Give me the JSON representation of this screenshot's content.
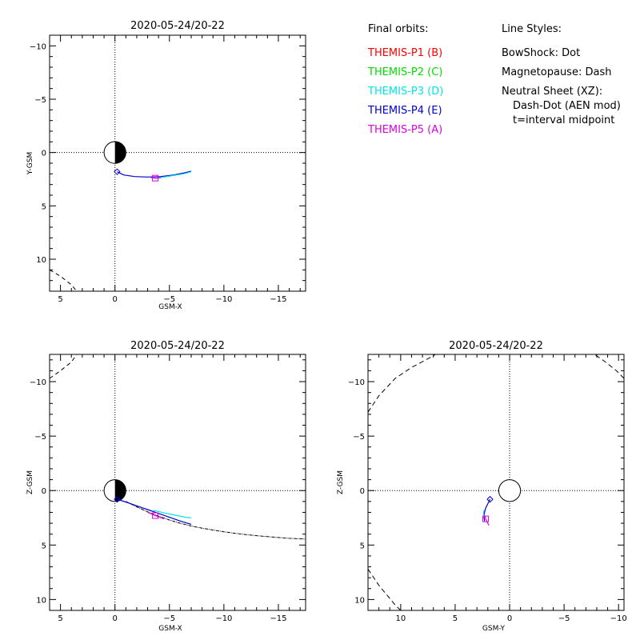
{
  "legend": {
    "orbits_title": "Final orbits:",
    "orbits": [
      {
        "label": "THEMIS-P1 (B)",
        "color": "#ff0000"
      },
      {
        "label": "THEMIS-P2 (C)",
        "color": "#00dd00"
      },
      {
        "label": "THEMIS-P3 (D)",
        "color": "#00e5e5"
      },
      {
        "label": "THEMIS-P4 (E)",
        "color": "#0000cc"
      },
      {
        "label": "THEMIS-P5 (A)",
        "color": "#dd00dd"
      }
    ],
    "styles_title": "Line Styles:",
    "styles": [
      "BowShock: Dot",
      "Magnetopause: Dash",
      "Neutral Sheet (XZ):",
      "Dash-Dot (AEN mod)",
      "t=interval midpoint"
    ]
  },
  "chart_data": [
    {
      "id": "xy",
      "type": "line",
      "title": "2020-05-24/20-22",
      "xlabel": "GSM-X",
      "ylabel": "Y-GSM",
      "xlim": [
        6,
        -17.5
      ],
      "ylim": [
        -11,
        13
      ],
      "xticks": [
        5,
        0,
        -5,
        -10,
        -15
      ],
      "yticks": [
        -10,
        -5,
        0,
        5,
        10
      ],
      "earth": {
        "radius": 1,
        "dark_side": "right"
      },
      "series": [
        {
          "ref": "THEMIS-P4 (E)",
          "color": "#0000cc",
          "marker": "diamond",
          "x": [
            -0.2,
            -0.8,
            -1.8,
            -3.0,
            -4.2,
            -5.4,
            -6.4,
            -7.0
          ],
          "y": [
            1.8,
            2.1,
            2.25,
            2.3,
            2.25,
            2.1,
            1.9,
            1.75
          ]
        },
        {
          "ref": "THEMIS-P3 (D)",
          "color": "#00e5e5",
          "x": [
            -3.7,
            -4.5,
            -5.4,
            -6.3,
            -7.0
          ],
          "y": [
            2.45,
            2.3,
            2.15,
            2.0,
            1.8
          ]
        },
        {
          "ref": "THEMIS-P5 (A)",
          "color": "#dd00dd",
          "marker": "square",
          "x": [
            -3.3,
            -3.7,
            -4.2
          ],
          "y": [
            2.35,
            2.4,
            2.35
          ]
        }
      ],
      "bowshock": {
        "x": [
          6,
          5,
          4,
          3.5
        ],
        "y": [
          11,
          11.6,
          12.4,
          13
        ]
      }
    },
    {
      "id": "xz",
      "type": "line",
      "title": "2020-05-24/20-22",
      "xlabel": "GSM-X",
      "ylabel": "Z-GSM",
      "xlim": [
        6,
        -17.5
      ],
      "ylim": [
        -12.5,
        11
      ],
      "xticks": [
        5,
        0,
        -5,
        -10,
        -15
      ],
      "yticks": [
        -10,
        -5,
        0,
        5,
        10
      ],
      "earth": {
        "radius": 1,
        "dark_side": "right"
      },
      "series": [
        {
          "ref": "THEMIS-P4 (E)",
          "color": "#0000cc",
          "marker": "diamond",
          "x": [
            -0.2,
            -1.0,
            -2.0,
            -3.0,
            -4.0,
            -5.0,
            -6.0,
            -7.0
          ],
          "y": [
            0.8,
            1.05,
            1.4,
            1.75,
            2.1,
            2.45,
            2.8,
            3.1
          ]
        },
        {
          "ref": "THEMIS-P3 (D)",
          "color": "#00e5e5",
          "x": [
            -3.5,
            -4.5,
            -5.5,
            -6.5,
            -7.0
          ],
          "y": [
            1.8,
            2.05,
            2.25,
            2.45,
            2.5
          ]
        },
        {
          "ref": "THEMIS-P5 (A)",
          "color": "#dd00dd",
          "marker": "square",
          "x": [
            -3.0,
            -3.7,
            -4.5
          ],
          "y": [
            2.0,
            2.3,
            2.6
          ]
        }
      ],
      "neutral_sheet": {
        "x": [
          -1,
          -2,
          -3,
          -4,
          -5,
          -6,
          -7,
          -8,
          -9,
          -10,
          -11,
          -12,
          -13,
          -14,
          -15,
          -16,
          -17.5
        ],
        "y": [
          1.0,
          1.5,
          1.95,
          2.35,
          2.7,
          3.0,
          3.25,
          3.45,
          3.62,
          3.78,
          3.92,
          4.04,
          4.14,
          4.23,
          4.31,
          4.38,
          4.45
        ]
      },
      "bowshock": {
        "x": [
          6,
          5,
          4,
          3.5
        ],
        "y": [
          -10.3,
          -11,
          -11.8,
          -12.5
        ]
      }
    },
    {
      "id": "yz",
      "type": "line",
      "title": "2020-05-24/20-22",
      "xlabel": "GSM-Y",
      "ylabel": "Z-GSM",
      "xlim": [
        13,
        -10.5
      ],
      "ylim": [
        -12.5,
        11
      ],
      "xticks": [
        10,
        5,
        0,
        -5,
        -10
      ],
      "yticks": [
        -10,
        -5,
        0,
        5,
        10
      ],
      "earth": {
        "radius": 1,
        "dark_side": "none"
      },
      "series": [
        {
          "ref": "THEMIS-P4 (E)",
          "color": "#0000cc",
          "marker": "diamond",
          "x": [
            1.8,
            2.0,
            2.2,
            2.3,
            2.35,
            2.3
          ],
          "y": [
            0.8,
            1.2,
            1.6,
            2.0,
            2.4,
            2.8
          ]
        },
        {
          "ref": "THEMIS-P3 (D)",
          "color": "#00e5e5",
          "x": [
            2.35,
            2.4,
            2.3
          ],
          "y": [
            1.8,
            2.1,
            2.4
          ]
        },
        {
          "ref": "THEMIS-P5 (A)",
          "color": "#dd00dd",
          "marker": "square",
          "x": [
            2.35,
            2.2,
            2.0,
            1.9
          ],
          "y": [
            2.2,
            2.6,
            3.0,
            3.2
          ]
        }
      ],
      "magnetopause": [
        {
          "x": [
            13,
            12,
            11,
            10.5,
            10
          ],
          "y": [
            7.2,
            8.7,
            9.9,
            10.5,
            11
          ]
        },
        {
          "x": [
            13,
            12,
            10.5,
            9,
            7.5,
            6.8
          ],
          "y": [
            -7.2,
            -8.7,
            -10.3,
            -11.3,
            -12.1,
            -12.5
          ]
        },
        {
          "x": [
            -10.5,
            -9.8,
            -8.8,
            -7.8
          ],
          "y": [
            -10.3,
            -11.0,
            -11.8,
            -12.5
          ]
        }
      ]
    }
  ]
}
